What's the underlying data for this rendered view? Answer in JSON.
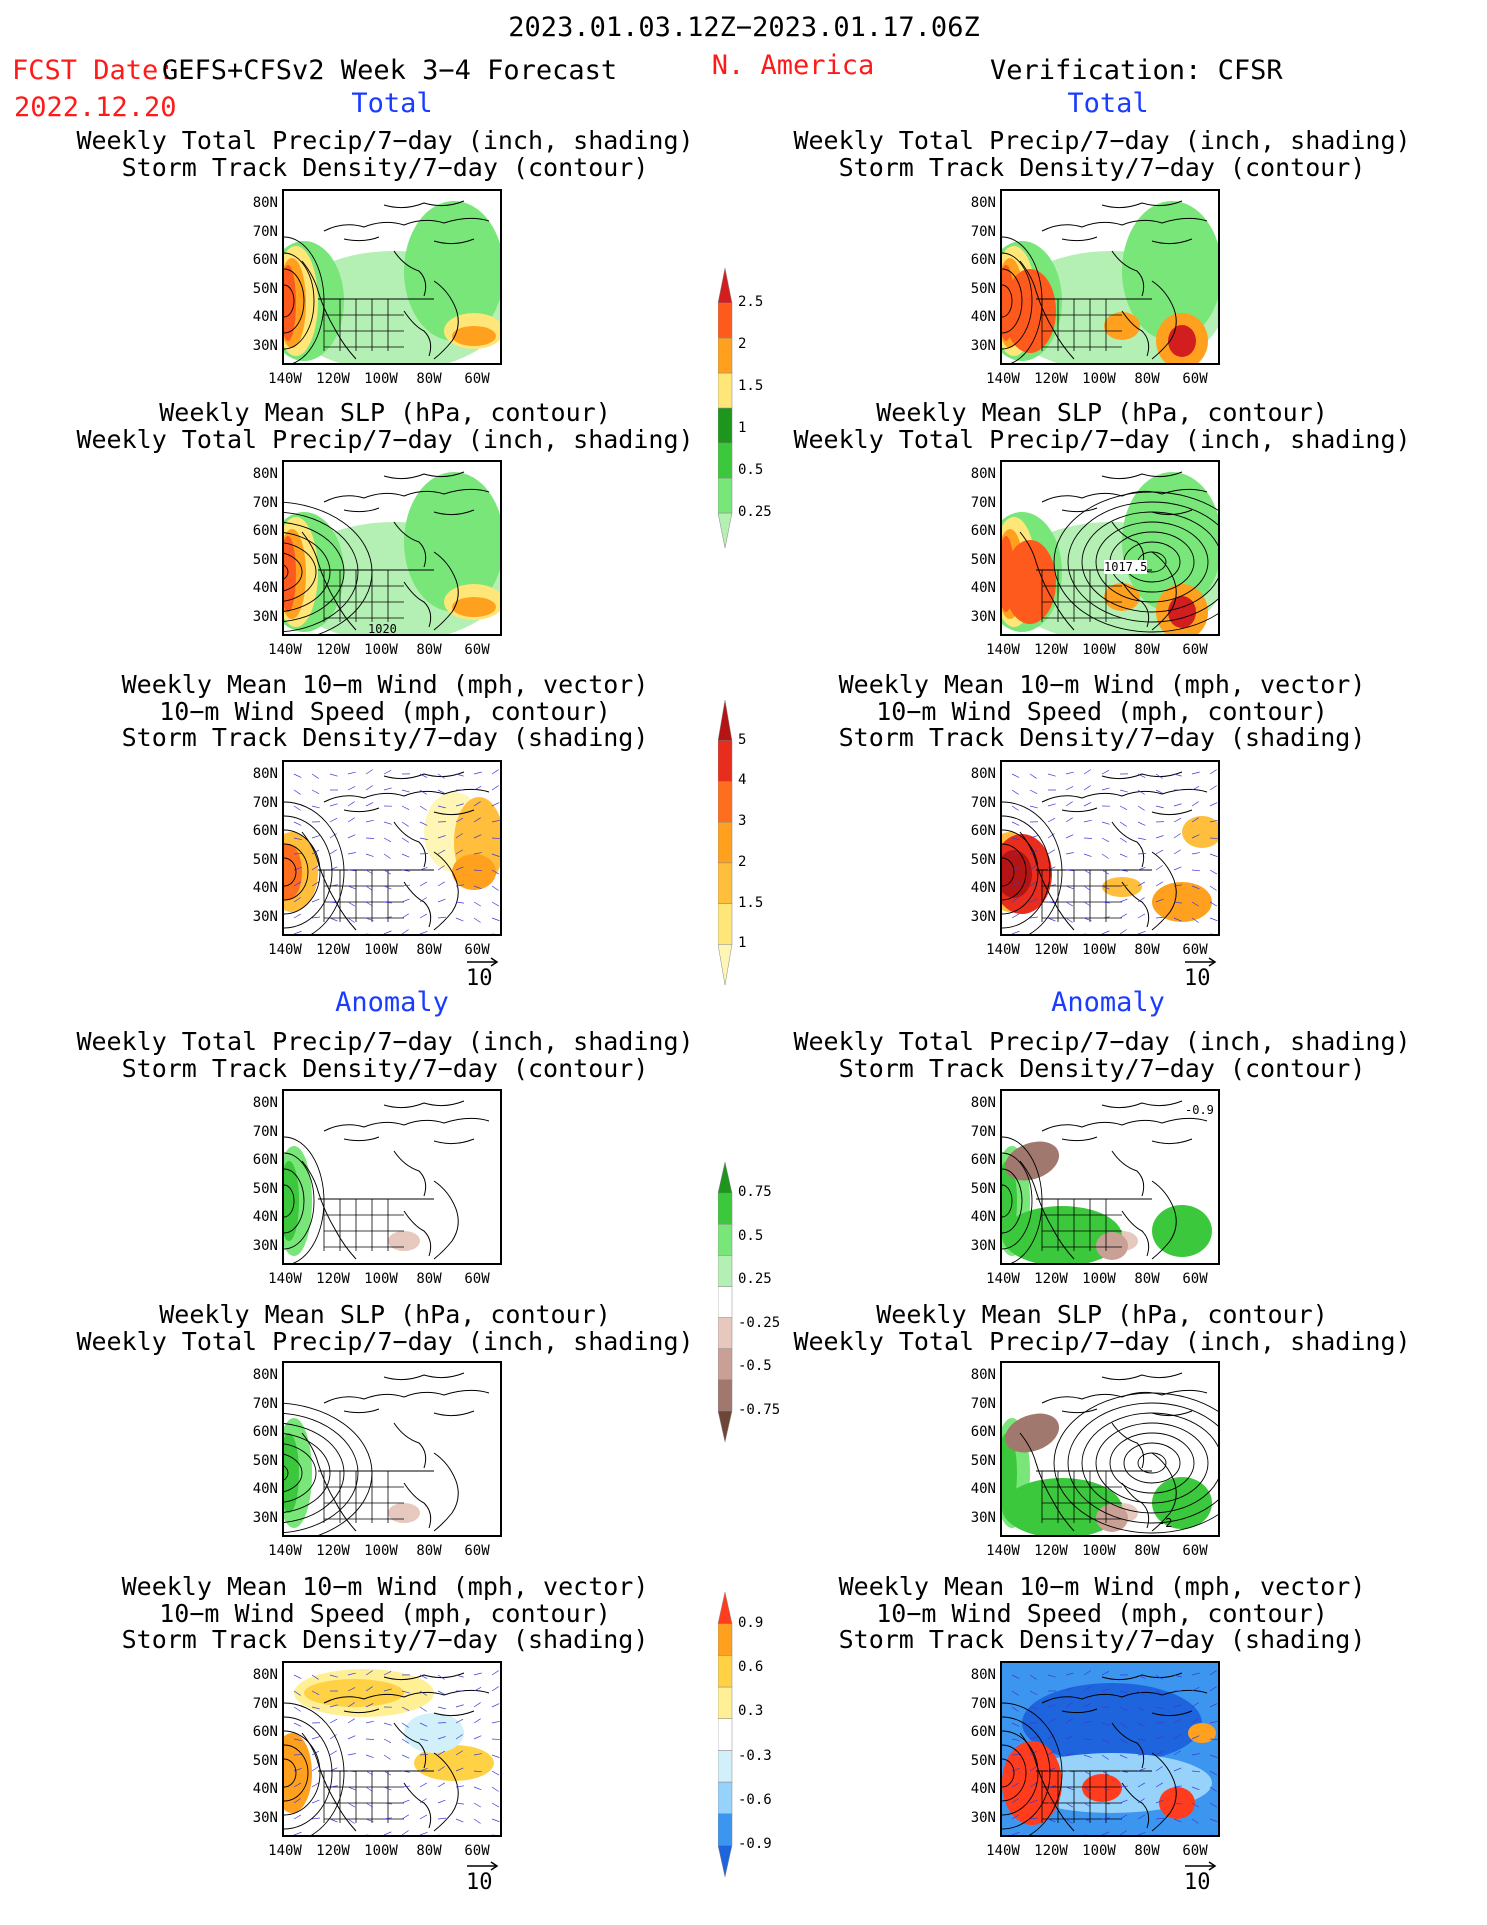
{
  "header": {
    "date_range": "2023.01.03.12Z−2023.01.17.06Z",
    "fcst_date_label": "FCST Date:",
    "fcst_date": "2022.12.20",
    "model": "GEFS+CFSv2 Week 3−4 Forecast",
    "region": "N. America",
    "verification": "Verification: CFSR"
  },
  "sections": {
    "total": "Total",
    "anomaly": "Anomaly"
  },
  "panel_titles": {
    "precip_track": [
      "Weekly Total Precip/7−day (inch, shading)",
      "Storm Track Density/7−day (contour)"
    ],
    "slp_precip": [
      "Weekly Mean SLP (hPa, contour)",
      "Weekly Total Precip/7−day (inch, shading)"
    ],
    "wind_track": [
      "Weekly Mean 10−m Wind (mph, vector)",
      "10−m Wind Speed (mph, contour)",
      "Storm Track Density/7−day (shading)"
    ]
  },
  "axes": {
    "lat_labels": [
      "80N",
      "70N",
      "60N",
      "50N",
      "40N",
      "30N"
    ],
    "lon_labels": [
      "140W",
      "120W",
      "100W",
      "80W",
      "60W"
    ]
  },
  "contour_labels": {
    "forecast_slp": "1020",
    "verif_slp": "1017.5",
    "verif_anom_track": "-0.9",
    "verif_anom_slp": "-2"
  },
  "vector_reference": "10",
  "colorbars": {
    "precip_total": {
      "labels": [
        "0.25",
        "0.5",
        "1",
        "1.5",
        "2",
        "2.5"
      ],
      "colors": [
        "#b4f0b4",
        "#78e678",
        "#3cc83c",
        "#1e961e",
        "#ffe678",
        "#ffa01e",
        "#ff5a1e",
        "#d21e1e"
      ]
    },
    "track_total": {
      "labels": [
        "1",
        "1.5",
        "2",
        "3",
        "4",
        "5"
      ],
      "colors": [
        "#fff5b4",
        "#ffe678",
        "#ffbe3c",
        "#ffa01e",
        "#ff6e1e",
        "#e62d1e",
        "#b41414"
      ]
    },
    "precip_anom": {
      "labels": [
        "-0.75",
        "-0.5",
        "-0.25",
        "0.25",
        "0.5",
        "0.75"
      ],
      "colors": [
        "#6e4637",
        "#a0786e",
        "#c8a096",
        "#e6c8be",
        "#ffffff",
        "#b4f0b4",
        "#78e678",
        "#3cc83c",
        "#1e961e"
      ]
    },
    "track_anom": {
      "labels": [
        "-0.9",
        "-0.6",
        "-0.3",
        "0.3",
        "0.6",
        "0.9"
      ],
      "colors": [
        "#1e64dc",
        "#3c96f0",
        "#96d2fa",
        "#d2f0fa",
        "#ffffff",
        "#fff096",
        "#ffd246",
        "#ffa01e",
        "#ff3c1e"
      ]
    }
  }
}
